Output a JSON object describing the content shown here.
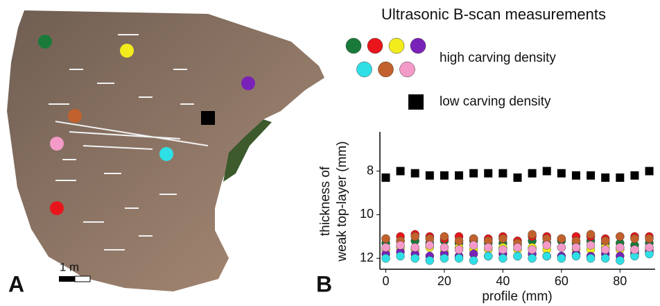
{
  "panel_a": {
    "label": "A",
    "scale_bar": "1 m"
  },
  "chart_data": {
    "type": "scatter",
    "panel_label": "B",
    "legend_title": "Ultrasonic B-scan measurements",
    "legend": [
      {
        "label": "high carving density",
        "marker": "circle"
      },
      {
        "label": "low carving density",
        "marker": "square"
      }
    ],
    "xlabel": "profile (mm)",
    "ylabel": [
      "thickness of",
      "weak top-layer (mm)"
    ],
    "x": [
      0,
      5,
      10,
      15,
      20,
      25,
      30,
      35,
      40,
      45,
      50,
      55,
      60,
      65,
      70,
      75,
      80,
      85,
      90
    ],
    "xlim": [
      -2,
      92
    ],
    "xticks": [
      0,
      20,
      40,
      60,
      80
    ],
    "ylim": [
      6.2,
      12.5
    ],
    "yticks": [
      8,
      10,
      12
    ],
    "y_reversed": true,
    "series": [
      {
        "marker": "square",
        "color": "#000000",
        "values": [
          8.3,
          8.0,
          8.1,
          8.2,
          8.2,
          8.2,
          8.1,
          8.1,
          8.1,
          8.3,
          8.1,
          8.0,
          8.1,
          8.2,
          8.2,
          8.3,
          8.3,
          8.2,
          8.0
        ]
      },
      {
        "marker": "circle",
        "color": "#1a7a3a",
        "values": [
          11.3,
          11.2,
          11.2,
          11.3,
          11.2,
          11.3,
          11.2,
          11.3,
          11.3,
          11.4,
          11.2,
          11.3,
          11.2,
          11.3,
          11.2,
          11.3,
          11.3,
          11.4,
          11.3
        ]
      },
      {
        "marker": "circle",
        "color": "#e8161b",
        "values": [
          11.1,
          11.0,
          10.9,
          11.0,
          11.1,
          11.0,
          11.1,
          11.1,
          11.0,
          11.2,
          11.0,
          11.0,
          11.1,
          11.0,
          11.0,
          11.1,
          11.0,
          11.0,
          11.0
        ]
      },
      {
        "marker": "circle",
        "color": "#f2ec1c",
        "values": [
          11.6,
          11.5,
          11.6,
          11.5,
          11.7,
          11.5,
          11.6,
          11.6,
          11.5,
          11.6,
          11.5,
          11.6,
          11.5,
          11.6,
          11.6,
          11.5,
          11.6,
          11.7,
          11.6
        ]
      },
      {
        "marker": "circle",
        "color": "#7a22b8",
        "values": [
          11.8,
          11.7,
          11.8,
          11.9,
          11.8,
          11.9,
          11.8,
          11.9,
          11.8,
          11.9,
          11.8,
          11.9,
          11.9,
          11.8,
          11.9,
          11.8,
          11.9,
          11.8,
          11.7
        ]
      },
      {
        "marker": "circle",
        "color": "#2ee0e6",
        "values": [
          12.0,
          11.9,
          12.0,
          12.1,
          12.0,
          12.0,
          12.1,
          11.9,
          12.0,
          11.9,
          12.0,
          11.9,
          12.0,
          11.9,
          12.0,
          12.0,
          12.1,
          11.9,
          11.8
        ]
      },
      {
        "marker": "circle",
        "color": "#c2612c",
        "values": [
          11.1,
          11.2,
          11.0,
          11.1,
          11.0,
          11.2,
          11.1,
          11.2,
          11.1,
          11.3,
          10.9,
          11.1,
          11.1,
          11.2,
          10.9,
          11.2,
          11.0,
          11.1,
          11.1
        ]
      },
      {
        "marker": "circle",
        "color": "#f49ac8",
        "values": [
          11.5,
          11.4,
          11.5,
          11.4,
          11.5,
          11.6,
          11.4,
          11.5,
          11.6,
          11.5,
          11.6,
          11.4,
          11.5,
          11.5,
          11.4,
          11.6,
          11.5,
          11.6,
          11.5
        ]
      }
    ]
  }
}
